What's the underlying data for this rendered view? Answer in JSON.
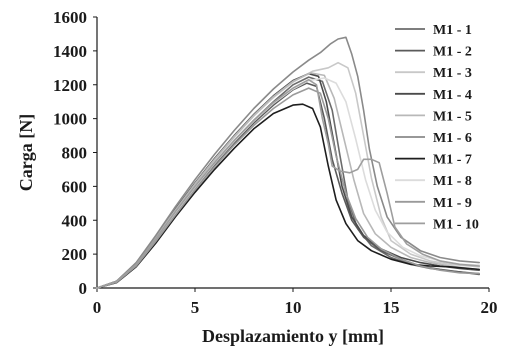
{
  "chart_data": {
    "type": "line",
    "xlabel": "Desplazamiento  y [mm]",
    "ylabel": "Carga  [N]",
    "xlim": [
      0,
      20
    ],
    "ylim": [
      0,
      1600
    ],
    "x_ticks": [
      "0",
      "5",
      "10",
      "15",
      "20"
    ],
    "y_ticks": [
      "0",
      "200",
      "400",
      "600",
      "800",
      "1000",
      "1200",
      "1400",
      "1600"
    ],
    "grid": false,
    "legend_position": "top-right",
    "series": [
      {
        "name": "M1 - 1",
        "color": "#6b6b6b",
        "points": [
          [
            0,
            0
          ],
          [
            1,
            40
          ],
          [
            2,
            140
          ],
          [
            3,
            290
          ],
          [
            4,
            450
          ],
          [
            5,
            600
          ],
          [
            6,
            740
          ],
          [
            7,
            870
          ],
          [
            8,
            990
          ],
          [
            9,
            1100
          ],
          [
            10,
            1200
          ],
          [
            10.8,
            1245
          ],
          [
            11.5,
            1220
          ],
          [
            12,
            1050
          ],
          [
            12.4,
            780
          ],
          [
            12.8,
            520
          ],
          [
            13.3,
            350
          ],
          [
            14,
            250
          ],
          [
            15,
            180
          ],
          [
            16,
            140
          ],
          [
            17,
            115
          ],
          [
            18,
            100
          ],
          [
            19,
            90
          ],
          [
            19.5,
            85
          ]
        ]
      },
      {
        "name": "M1 - 2",
        "color": "#5a5a5a",
        "points": [
          [
            0,
            0
          ],
          [
            1,
            35
          ],
          [
            2,
            135
          ],
          [
            3,
            280
          ],
          [
            4,
            440
          ],
          [
            5,
            590
          ],
          [
            6,
            725
          ],
          [
            7,
            855
          ],
          [
            8,
            975
          ],
          [
            9,
            1080
          ],
          [
            10,
            1170
          ],
          [
            10.7,
            1210
          ],
          [
            11.2,
            1190
          ],
          [
            11.6,
            1000
          ],
          [
            12,
            760
          ],
          [
            12.5,
            560
          ],
          [
            13,
            400
          ],
          [
            13.6,
            300
          ],
          [
            14.5,
            220
          ],
          [
            15.5,
            170
          ],
          [
            16.5,
            130
          ],
          [
            17.5,
            110
          ],
          [
            18.5,
            95
          ],
          [
            19.5,
            80
          ]
        ]
      },
      {
        "name": "M1 - 3",
        "color": "#c8c8c8",
        "points": [
          [
            0,
            0
          ],
          [
            1,
            38
          ],
          [
            2,
            140
          ],
          [
            3,
            290
          ],
          [
            4,
            455
          ],
          [
            5,
            610
          ],
          [
            6,
            755
          ],
          [
            7,
            890
          ],
          [
            8,
            1015
          ],
          [
            9,
            1125
          ],
          [
            10,
            1215
          ],
          [
            11,
            1280
          ],
          [
            11.8,
            1300
          ],
          [
            12.3,
            1330
          ],
          [
            12.8,
            1300
          ],
          [
            13.2,
            1150
          ],
          [
            13.6,
            900
          ],
          [
            14,
            650
          ],
          [
            14.5,
            420
          ],
          [
            15,
            280
          ],
          [
            16,
            200
          ],
          [
            17,
            160
          ],
          [
            18,
            140
          ],
          [
            19,
            130
          ],
          [
            19.5,
            125
          ]
        ]
      },
      {
        "name": "M1 - 4",
        "color": "#4a4a4a",
        "points": [
          [
            0,
            0
          ],
          [
            1,
            40
          ],
          [
            2,
            145
          ],
          [
            3,
            300
          ],
          [
            4,
            465
          ],
          [
            5,
            620
          ],
          [
            6,
            765
          ],
          [
            7,
            900
          ],
          [
            8,
            1025
          ],
          [
            9,
            1135
          ],
          [
            10,
            1225
          ],
          [
            10.8,
            1265
          ],
          [
            11.3,
            1250
          ],
          [
            11.7,
            1100
          ],
          [
            12.1,
            850
          ],
          [
            12.5,
            600
          ],
          [
            13,
            420
          ],
          [
            13.6,
            310
          ],
          [
            14.5,
            230
          ],
          [
            15.5,
            180
          ],
          [
            16.5,
            150
          ],
          [
            17.5,
            130
          ],
          [
            18.5,
            115
          ],
          [
            19.5,
            105
          ]
        ]
      },
      {
        "name": "M1 - 5",
        "color": "#b8b8b8",
        "points": [
          [
            0,
            0
          ],
          [
            1,
            40
          ],
          [
            2,
            145
          ],
          [
            3,
            300
          ],
          [
            4,
            460
          ],
          [
            5,
            615
          ],
          [
            6,
            760
          ],
          [
            7,
            895
          ],
          [
            8,
            1020
          ],
          [
            9,
            1130
          ],
          [
            10,
            1220
          ],
          [
            10.9,
            1270
          ],
          [
            11.6,
            1255
          ],
          [
            12.1,
            1120
          ],
          [
            12.6,
            880
          ],
          [
            13.1,
            640
          ],
          [
            13.6,
            440
          ],
          [
            14.2,
            320
          ],
          [
            15,
            240
          ],
          [
            16,
            180
          ],
          [
            17,
            150
          ],
          [
            18,
            130
          ],
          [
            19,
            115
          ],
          [
            19.5,
            110
          ]
        ]
      },
      {
        "name": "M1 - 6",
        "color": "#8a8a8a",
        "points": [
          [
            0,
            0
          ],
          [
            1,
            40
          ],
          [
            2,
            150
          ],
          [
            3,
            310
          ],
          [
            4,
            480
          ],
          [
            5,
            640
          ],
          [
            6,
            790
          ],
          [
            7,
            930
          ],
          [
            8,
            1060
          ],
          [
            9,
            1175
          ],
          [
            10,
            1275
          ],
          [
            10.8,
            1345
          ],
          [
            11.4,
            1390
          ],
          [
            11.9,
            1440
          ],
          [
            12.3,
            1470
          ],
          [
            12.7,
            1480
          ],
          [
            13,
            1380
          ],
          [
            13.3,
            1250
          ],
          [
            13.6,
            1050
          ],
          [
            13.9,
            820
          ],
          [
            14.3,
            600
          ],
          [
            14.8,
            420
          ],
          [
            15.5,
            300
          ],
          [
            16.5,
            220
          ],
          [
            17.5,
            180
          ],
          [
            18.5,
            160
          ],
          [
            19.5,
            150
          ]
        ]
      },
      {
        "name": "M1 - 7",
        "color": "#1e1e1e",
        "points": [
          [
            0,
            0
          ],
          [
            1,
            32
          ],
          [
            2,
            125
          ],
          [
            3,
            265
          ],
          [
            4,
            420
          ],
          [
            5,
            565
          ],
          [
            6,
            700
          ],
          [
            7,
            825
          ],
          [
            8,
            940
          ],
          [
            9,
            1030
          ],
          [
            10,
            1080
          ],
          [
            10.5,
            1085
          ],
          [
            11,
            1060
          ],
          [
            11.4,
            950
          ],
          [
            11.8,
            720
          ],
          [
            12.2,
            520
          ],
          [
            12.7,
            380
          ],
          [
            13.3,
            280
          ],
          [
            14,
            220
          ],
          [
            15,
            170
          ],
          [
            16,
            140
          ],
          [
            17,
            130
          ],
          [
            18,
            125
          ],
          [
            19,
            115
          ],
          [
            19.5,
            110
          ]
        ]
      },
      {
        "name": "M1 - 8",
        "color": "#dcdcdc",
        "points": [
          [
            0,
            0
          ],
          [
            1,
            36
          ],
          [
            2,
            135
          ],
          [
            3,
            285
          ],
          [
            4,
            445
          ],
          [
            5,
            595
          ],
          [
            6,
            735
          ],
          [
            7,
            865
          ],
          [
            8,
            985
          ],
          [
            9,
            1090
          ],
          [
            10,
            1175
          ],
          [
            10.8,
            1225
          ],
          [
            11.6,
            1240
          ],
          [
            12.2,
            1210
          ],
          [
            12.7,
            1100
          ],
          [
            13.2,
            880
          ],
          [
            13.7,
            640
          ],
          [
            14.2,
            460
          ],
          [
            14.8,
            330
          ],
          [
            15.6,
            240
          ],
          [
            16.5,
            190
          ],
          [
            17.5,
            160
          ],
          [
            18.5,
            140
          ],
          [
            19.5,
            135
          ]
        ]
      },
      {
        "name": "M1 - 9",
        "color": "#9a9a9a",
        "points": [
          [
            0,
            0
          ],
          [
            1,
            34
          ],
          [
            2,
            130
          ],
          [
            3,
            275
          ],
          [
            4,
            430
          ],
          [
            5,
            580
          ],
          [
            6,
            715
          ],
          [
            7,
            845
          ],
          [
            8,
            960
          ],
          [
            9,
            1060
          ],
          [
            10,
            1140
          ],
          [
            10.8,
            1180
          ],
          [
            11.4,
            1150
          ],
          [
            11.8,
            1000
          ],
          [
            12.2,
            780
          ],
          [
            12.7,
            560
          ],
          [
            13.2,
            410
          ],
          [
            13.8,
            300
          ],
          [
            14.5,
            230
          ],
          [
            15.5,
            170
          ],
          [
            16.5,
            130
          ],
          [
            17.5,
            105
          ],
          [
            18.5,
            90
          ],
          [
            19.5,
            85
          ]
        ]
      },
      {
        "name": "M1 - 10",
        "color": "#9e9e9e",
        "points": [
          [
            0,
            0
          ],
          [
            1,
            38
          ],
          [
            2,
            140
          ],
          [
            3,
            290
          ],
          [
            4,
            450
          ],
          [
            5,
            600
          ],
          [
            6,
            740
          ],
          [
            7,
            870
          ],
          [
            8,
            990
          ],
          [
            9,
            1095
          ],
          [
            10,
            1180
          ],
          [
            10.8,
            1230
          ],
          [
            11.2,
            1200
          ],
          [
            11.5,
            1000
          ],
          [
            11.8,
            850
          ],
          [
            12,
            720
          ],
          [
            12.4,
            690
          ],
          [
            12.9,
            680
          ],
          [
            13.3,
            700
          ],
          [
            13.6,
            760
          ],
          [
            14,
            760
          ],
          [
            14.4,
            740
          ],
          [
            14.8,
            560
          ],
          [
            15.2,
            360
          ],
          [
            15.8,
            260
          ],
          [
            16.6,
            200
          ],
          [
            17.5,
            160
          ],
          [
            18.5,
            140
          ],
          [
            19.5,
            130
          ]
        ]
      }
    ]
  }
}
